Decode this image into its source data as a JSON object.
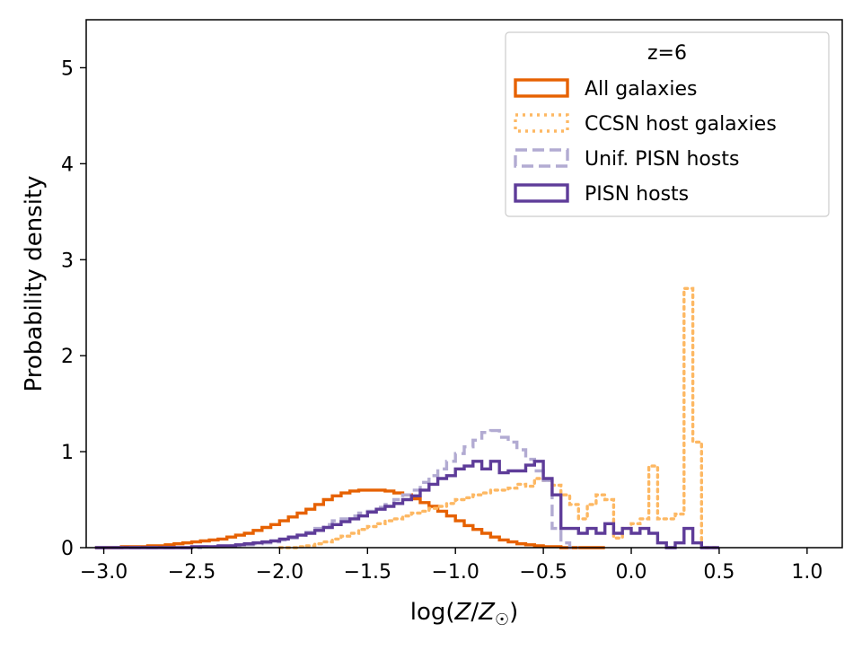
{
  "chart_data": {
    "type": "histogram-step",
    "title": "",
    "xlabel": "log(Z/Z☉)",
    "xlabel_parts": {
      "main": "log(",
      "italic_z": "Z",
      "slash": "/",
      "italic_z2": "Z",
      "sub": "☉",
      "close": ")"
    },
    "ylabel": "Probability density",
    "xlim": [
      -3.1,
      1.2
    ],
    "ylim": [
      0,
      5.5
    ],
    "xticks": [
      -3.0,
      -2.5,
      -2.0,
      -1.5,
      -1.0,
      -0.5,
      0.0,
      0.5,
      1.0
    ],
    "xtick_labels": [
      "−3.0",
      "−2.5",
      "−2.0",
      "−1.5",
      "−1.0",
      "−0.5",
      "0.0",
      "0.5",
      "1.0"
    ],
    "yticks": [
      0,
      1,
      2,
      3,
      4,
      5
    ],
    "ytick_labels": [
      "0",
      "1",
      "2",
      "3",
      "4",
      "5"
    ],
    "legend": {
      "title": "z=6",
      "placement": "top-right",
      "entries": [
        "All galaxies",
        "CCSN host galaxies",
        "Unif. PISN hosts",
        "PISN hosts"
      ]
    },
    "series": [
      {
        "name": "All galaxies",
        "color": "#e66101",
        "style": "solid",
        "x": [
          -3.05,
          -3.0,
          -2.95,
          -2.9,
          -2.85,
          -2.8,
          -2.75,
          -2.7,
          -2.65,
          -2.6,
          -2.55,
          -2.5,
          -2.45,
          -2.4,
          -2.35,
          -2.3,
          -2.25,
          -2.2,
          -2.15,
          -2.1,
          -2.05,
          -2.0,
          -1.95,
          -1.9,
          -1.85,
          -1.8,
          -1.75,
          -1.7,
          -1.65,
          -1.6,
          -1.55,
          -1.5,
          -1.45,
          -1.4,
          -1.35,
          -1.3,
          -1.25,
          -1.2,
          -1.15,
          -1.1,
          -1.05,
          -1.0,
          -0.95,
          -0.9,
          -0.85,
          -0.8,
          -0.75,
          -0.7,
          -0.65,
          -0.6,
          -0.55,
          -0.5,
          -0.45,
          -0.4,
          -0.35,
          -0.3,
          -0.25,
          -0.2
        ],
        "y": [
          0.0,
          0.0,
          0.0,
          0.01,
          0.01,
          0.01,
          0.02,
          0.02,
          0.03,
          0.04,
          0.05,
          0.06,
          0.07,
          0.08,
          0.09,
          0.11,
          0.13,
          0.15,
          0.18,
          0.21,
          0.24,
          0.28,
          0.32,
          0.36,
          0.4,
          0.45,
          0.5,
          0.54,
          0.57,
          0.59,
          0.6,
          0.6,
          0.6,
          0.59,
          0.57,
          0.55,
          0.51,
          0.47,
          0.43,
          0.38,
          0.33,
          0.28,
          0.23,
          0.19,
          0.15,
          0.11,
          0.08,
          0.06,
          0.04,
          0.03,
          0.02,
          0.01,
          0.01,
          0.0,
          0.0,
          0.0,
          0.0,
          0.0
        ]
      },
      {
        "name": "CCSN host galaxies",
        "color": "#fdb863",
        "style": "dotted",
        "x": [
          -2.0,
          -1.95,
          -1.9,
          -1.85,
          -1.8,
          -1.75,
          -1.7,
          -1.65,
          -1.6,
          -1.55,
          -1.5,
          -1.45,
          -1.4,
          -1.35,
          -1.3,
          -1.25,
          -1.2,
          -1.15,
          -1.1,
          -1.05,
          -1.0,
          -0.95,
          -0.9,
          -0.85,
          -0.8,
          -0.75,
          -0.7,
          -0.65,
          -0.6,
          -0.55,
          -0.5,
          -0.45,
          -0.4,
          -0.35,
          -0.3,
          -0.25,
          -0.2,
          -0.15,
          -0.1,
          -0.05,
          0.0,
          0.05,
          0.1,
          0.15,
          0.2,
          0.25,
          0.3,
          0.35,
          0.4,
          0.45
        ],
        "y": [
          0.0,
          0.0,
          0.01,
          0.02,
          0.04,
          0.06,
          0.09,
          0.12,
          0.15,
          0.19,
          0.22,
          0.25,
          0.28,
          0.3,
          0.33,
          0.36,
          0.38,
          0.41,
          0.43,
          0.46,
          0.5,
          0.52,
          0.55,
          0.57,
          0.6,
          0.6,
          0.62,
          0.66,
          0.64,
          0.72,
          0.7,
          0.65,
          0.55,
          0.45,
          0.3,
          0.45,
          0.55,
          0.5,
          0.1,
          0.2,
          0.25,
          0.3,
          0.85,
          0.3,
          0.3,
          0.35,
          2.7,
          1.1,
          0.0,
          0.0
        ]
      },
      {
        "name": "Unif. PISN hosts",
        "color": "#b2abd2",
        "style": "dashed",
        "x": [
          -3.05,
          -3.0,
          -2.95,
          -2.9,
          -2.85,
          -2.8,
          -2.75,
          -2.7,
          -2.65,
          -2.6,
          -2.55,
          -2.5,
          -2.45,
          -2.4,
          -2.35,
          -2.3,
          -2.25,
          -2.2,
          -2.15,
          -2.1,
          -2.05,
          -2.0,
          -1.95,
          -1.9,
          -1.85,
          -1.8,
          -1.75,
          -1.7,
          -1.65,
          -1.6,
          -1.55,
          -1.5,
          -1.45,
          -1.4,
          -1.35,
          -1.3,
          -1.25,
          -1.2,
          -1.15,
          -1.1,
          -1.05,
          -1.0,
          -0.95,
          -0.9,
          -0.85,
          -0.8,
          -0.75,
          -0.7,
          -0.65,
          -0.6,
          -0.55,
          -0.5,
          -0.45,
          -0.4,
          -0.35
        ],
        "y": [
          0.0,
          0.0,
          0.0,
          0.0,
          0.0,
          0.0,
          0.0,
          0.0,
          0.0,
          0.0,
          0.0,
          0.0,
          0.01,
          0.01,
          0.01,
          0.02,
          0.02,
          0.03,
          0.04,
          0.05,
          0.06,
          0.08,
          0.1,
          0.13,
          0.16,
          0.2,
          0.24,
          0.28,
          0.3,
          0.33,
          0.36,
          0.38,
          0.42,
          0.45,
          0.5,
          0.55,
          0.6,
          0.68,
          0.75,
          0.82,
          0.9,
          0.98,
          1.05,
          1.12,
          1.2,
          1.22,
          1.15,
          1.1,
          1.02,
          0.92,
          0.8,
          0.7,
          0.2,
          0.05,
          0.0
        ]
      },
      {
        "name": "PISN hosts",
        "color": "#5e3c99",
        "style": "solid",
        "x": [
          -3.05,
          -3.0,
          -2.95,
          -2.9,
          -2.85,
          -2.8,
          -2.75,
          -2.7,
          -2.65,
          -2.6,
          -2.55,
          -2.5,
          -2.45,
          -2.4,
          -2.35,
          -2.3,
          -2.25,
          -2.2,
          -2.15,
          -2.1,
          -2.05,
          -2.0,
          -1.95,
          -1.9,
          -1.85,
          -1.8,
          -1.75,
          -1.7,
          -1.65,
          -1.6,
          -1.55,
          -1.5,
          -1.45,
          -1.4,
          -1.35,
          -1.3,
          -1.25,
          -1.2,
          -1.15,
          -1.1,
          -1.05,
          -1.0,
          -0.95,
          -0.9,
          -0.85,
          -0.8,
          -0.75,
          -0.7,
          -0.65,
          -0.6,
          -0.55,
          -0.5,
          -0.45,
          -0.4,
          -0.35,
          -0.3,
          -0.25,
          -0.2,
          -0.15,
          -0.1,
          -0.05,
          0.0,
          0.05,
          0.1,
          0.15,
          0.2,
          0.25,
          0.3,
          0.35,
          0.4,
          0.45
        ],
        "y": [
          0.0,
          0.0,
          0.0,
          0.0,
          0.0,
          0.0,
          0.0,
          0.0,
          0.0,
          0.0,
          0.0,
          0.01,
          0.01,
          0.01,
          0.02,
          0.02,
          0.03,
          0.04,
          0.05,
          0.06,
          0.07,
          0.09,
          0.11,
          0.13,
          0.15,
          0.18,
          0.21,
          0.24,
          0.27,
          0.3,
          0.33,
          0.37,
          0.4,
          0.43,
          0.46,
          0.5,
          0.54,
          0.6,
          0.66,
          0.72,
          0.75,
          0.82,
          0.85,
          0.9,
          0.82,
          0.9,
          0.78,
          0.8,
          0.8,
          0.86,
          0.9,
          0.72,
          0.55,
          0.2,
          0.2,
          0.15,
          0.2,
          0.15,
          0.25,
          0.15,
          0.2,
          0.15,
          0.2,
          0.15,
          0.05,
          0.0,
          0.05,
          0.2,
          0.05,
          0.0,
          0.0
        ]
      }
    ]
  }
}
